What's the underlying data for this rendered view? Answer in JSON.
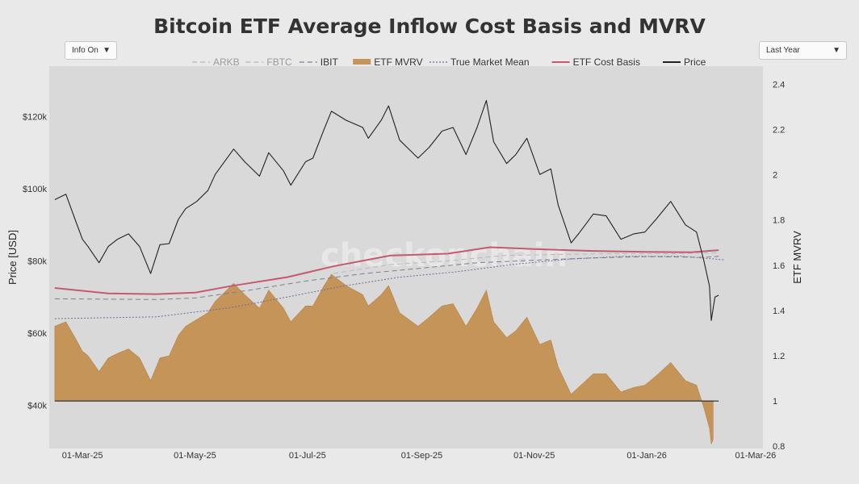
{
  "chart_title": "Bitcoin ETF Average Inflow Cost Basis and MVRV",
  "controls": {
    "info_toggle": "Info On",
    "range_select": "Last Year",
    "arrow": "▼"
  },
  "watermark": "checkonchain",
  "legend": [
    {
      "label": "ARKB",
      "style": "dash",
      "color": "#b9b9b9"
    },
    {
      "label": "FBTC",
      "style": "dash",
      "color": "#b9b9b9"
    },
    {
      "label": "IBIT",
      "style": "dash",
      "color": "#7a7f93"
    },
    {
      "label": "ETF MVRV",
      "style": "fill",
      "color": "#c49458"
    },
    {
      "label": "True Market Mean",
      "style": "dot",
      "color": "#6b6f9a"
    },
    {
      "label": "ETF Cost Basis",
      "style": "line",
      "color": "#c45a72"
    },
    {
      "label": "Price",
      "style": "line",
      "color": "#222222"
    }
  ],
  "chart_data": {
    "type": "line",
    "title": "Bitcoin ETF Average Inflow Cost Basis and MVRV",
    "xlabel": "",
    "ylabel": "Price [USD]",
    "y2label": "ETF MVRV",
    "x_ticks": [
      "01-Mar-25",
      "01-May-25",
      "01-Jul-25",
      "01-Sep-25",
      "01-Nov-25",
      "01-Jan-26",
      "01-Mar-26"
    ],
    "y_ticks": [
      "$40k",
      "$60k",
      "$80k",
      "$100k",
      "$120k"
    ],
    "y2_ticks": [
      "0.8",
      "1",
      "1.2",
      "1.4",
      "1.6",
      "1.8",
      "2",
      "2.2",
      "2.4"
    ],
    "ylim": [
      28000,
      134000
    ],
    "y2lim": [
      0.79,
      2.48
    ],
    "xlim": [
      "2025-02-11",
      "2026-03-05"
    ],
    "grid": false,
    "legend_position": "top",
    "mvrv_baseline": 1,
    "series": [
      {
        "name": "Price",
        "color": "#222222",
        "points": [
          [
            "2025-02-14",
            97000
          ],
          [
            "2025-02-20",
            98500
          ],
          [
            "2025-02-25",
            91500
          ],
          [
            "2025-03-01",
            86000
          ],
          [
            "2025-03-04",
            84000
          ],
          [
            "2025-03-10",
            79500
          ],
          [
            "2025-03-15",
            84000
          ],
          [
            "2025-03-20",
            86000
          ],
          [
            "2025-03-26",
            87500
          ],
          [
            "2025-04-01",
            84000
          ],
          [
            "2025-04-07",
            76500
          ],
          [
            "2025-04-12",
            84500
          ],
          [
            "2025-04-17",
            84800
          ],
          [
            "2025-04-22",
            91500
          ],
          [
            "2025-04-26",
            94500
          ],
          [
            "2025-05-02",
            96500
          ],
          [
            "2025-05-08",
            99500
          ],
          [
            "2025-05-12",
            104000
          ],
          [
            "2025-05-22",
            111000
          ],
          [
            "2025-05-28",
            107500
          ],
          [
            "2025-06-05",
            103500
          ],
          [
            "2025-06-10",
            110000
          ],
          [
            "2025-06-18",
            105000
          ],
          [
            "2025-06-22",
            101000
          ],
          [
            "2025-06-30",
            107500
          ],
          [
            "2025-07-04",
            108500
          ],
          [
            "2025-07-10",
            116500
          ],
          [
            "2025-07-14",
            121500
          ],
          [
            "2025-07-22",
            119000
          ],
          [
            "2025-07-31",
            117000
          ],
          [
            "2025-08-03",
            114000
          ],
          [
            "2025-08-10",
            119000
          ],
          [
            "2025-08-14",
            123000
          ],
          [
            "2025-08-20",
            113500
          ],
          [
            "2025-08-30",
            108500
          ],
          [
            "2025-09-05",
            111500
          ],
          [
            "2025-09-12",
            116000
          ],
          [
            "2025-09-18",
            117000
          ],
          [
            "2025-09-25",
            109500
          ],
          [
            "2025-10-01",
            117000
          ],
          [
            "2025-10-06",
            124500
          ],
          [
            "2025-10-10",
            113000
          ],
          [
            "2025-10-17",
            107000
          ],
          [
            "2025-10-22",
            109500
          ],
          [
            "2025-10-28",
            114000
          ],
          [
            "2025-11-04",
            104000
          ],
          [
            "2025-11-10",
            105500
          ],
          [
            "2025-11-14",
            95500
          ],
          [
            "2025-11-21",
            85000
          ],
          [
            "2025-11-25",
            87500
          ],
          [
            "2025-12-03",
            93000
          ],
          [
            "2025-12-10",
            92500
          ],
          [
            "2025-12-18",
            86000
          ],
          [
            "2025-12-25",
            87500
          ],
          [
            "2025-12-31",
            88000
          ],
          [
            "2026-01-06",
            91500
          ],
          [
            "2026-01-14",
            96500
          ],
          [
            "2026-01-22",
            90000
          ],
          [
            "2026-01-28",
            88000
          ],
          [
            "2026-02-01",
            80000
          ],
          [
            "2026-02-04",
            73000
          ],
          [
            "2026-02-05",
            63500
          ],
          [
            "2026-02-07",
            70000
          ],
          [
            "2026-02-09",
            70500
          ]
        ]
      },
      {
        "name": "ETF Cost Basis",
        "color": "#c45a72",
        "points": [
          [
            "2025-02-14",
            72500
          ],
          [
            "2025-03-15",
            71000
          ],
          [
            "2025-04-10",
            70800
          ],
          [
            "2025-05-01",
            71200
          ],
          [
            "2025-05-20",
            73000
          ],
          [
            "2025-06-20",
            75500
          ],
          [
            "2025-07-15",
            78500
          ],
          [
            "2025-08-15",
            81500
          ],
          [
            "2025-09-15",
            82000
          ],
          [
            "2025-10-08",
            83800
          ],
          [
            "2025-11-01",
            83300
          ],
          [
            "2025-12-01",
            82800
          ],
          [
            "2026-01-01",
            82500
          ],
          [
            "2026-01-25",
            82400
          ],
          [
            "2026-02-09",
            83000
          ]
        ]
      },
      {
        "name": "True Market Mean",
        "color": "#6b6f9a",
        "points": [
          [
            "2025-02-14",
            64000
          ],
          [
            "2025-04-10",
            64500
          ],
          [
            "2025-05-20",
            67000
          ],
          [
            "2025-06-20",
            70000
          ],
          [
            "2025-07-20",
            73000
          ],
          [
            "2025-08-20",
            75500
          ],
          [
            "2025-09-20",
            77000
          ],
          [
            "2025-10-20",
            79000
          ],
          [
            "2025-11-20",
            80500
          ],
          [
            "2025-12-20",
            81300
          ],
          [
            "2026-01-20",
            81300
          ],
          [
            "2026-02-12",
            80300
          ]
        ]
      },
      {
        "name": "IBIT",
        "color": "#7a7f93",
        "points": [
          [
            "2025-02-14",
            69500
          ],
          [
            "2025-04-10",
            69300
          ],
          [
            "2025-05-01",
            69700
          ],
          [
            "2025-06-01",
            72000
          ],
          [
            "2025-07-01",
            74500
          ],
          [
            "2025-08-01",
            76500
          ],
          [
            "2025-09-01",
            78000
          ],
          [
            "2025-10-01",
            79500
          ],
          [
            "2025-11-01",
            80200
          ],
          [
            "2025-12-01",
            80800
          ],
          [
            "2026-01-01",
            81200
          ],
          [
            "2026-02-01",
            81000
          ],
          [
            "2026-02-09",
            81300
          ]
        ]
      },
      {
        "name": "FBTC",
        "color": "#b9b9b9",
        "points": [
          [
            "2025-07-15",
            76500
          ],
          [
            "2025-08-15",
            79000
          ],
          [
            "2025-09-15",
            80000
          ],
          [
            "2025-10-15",
            81500
          ],
          [
            "2025-11-15",
            81800
          ],
          [
            "2025-12-15",
            82000
          ],
          [
            "2026-01-15",
            82000
          ],
          [
            "2026-02-09",
            82300
          ]
        ]
      },
      {
        "name": "ETF MVRV",
        "color": "#c49458",
        "axis": "y2",
        "points": [
          [
            "2025-02-14",
            1.33
          ],
          [
            "2025-02-20",
            1.35
          ],
          [
            "2025-02-25",
            1.28
          ],
          [
            "2025-03-01",
            1.22
          ],
          [
            "2025-03-04",
            1.2
          ],
          [
            "2025-03-10",
            1.13
          ],
          [
            "2025-03-15",
            1.19
          ],
          [
            "2025-03-20",
            1.21
          ],
          [
            "2025-03-26",
            1.23
          ],
          [
            "2025-04-01",
            1.19
          ],
          [
            "2025-04-07",
            1.09
          ],
          [
            "2025-04-12",
            1.19
          ],
          [
            "2025-04-17",
            1.2
          ],
          [
            "2025-04-22",
            1.29
          ],
          [
            "2025-04-26",
            1.33
          ],
          [
            "2025-05-02",
            1.36
          ],
          [
            "2025-05-08",
            1.39
          ],
          [
            "2025-05-12",
            1.44
          ],
          [
            "2025-05-22",
            1.52
          ],
          [
            "2025-05-28",
            1.47
          ],
          [
            "2025-06-05",
            1.41
          ],
          [
            "2025-06-10",
            1.49
          ],
          [
            "2025-06-18",
            1.41
          ],
          [
            "2025-06-22",
            1.35
          ],
          [
            "2025-06-30",
            1.42
          ],
          [
            "2025-07-04",
            1.42
          ],
          [
            "2025-07-10",
            1.51
          ],
          [
            "2025-07-14",
            1.56
          ],
          [
            "2025-07-22",
            1.51
          ],
          [
            "2025-07-31",
            1.47
          ],
          [
            "2025-08-03",
            1.42
          ],
          [
            "2025-08-10",
            1.47
          ],
          [
            "2025-08-14",
            1.51
          ],
          [
            "2025-08-20",
            1.39
          ],
          [
            "2025-08-30",
            1.33
          ],
          [
            "2025-09-05",
            1.37
          ],
          [
            "2025-09-12",
            1.42
          ],
          [
            "2025-09-18",
            1.43
          ],
          [
            "2025-09-25",
            1.33
          ],
          [
            "2025-10-01",
            1.41
          ],
          [
            "2025-10-06",
            1.49
          ],
          [
            "2025-10-10",
            1.35
          ],
          [
            "2025-10-17",
            1.28
          ],
          [
            "2025-10-22",
            1.31
          ],
          [
            "2025-10-28",
            1.37
          ],
          [
            "2025-11-04",
            1.25
          ],
          [
            "2025-11-10",
            1.27
          ],
          [
            "2025-11-14",
            1.15
          ],
          [
            "2025-11-21",
            1.03
          ],
          [
            "2025-11-25",
            1.06
          ],
          [
            "2025-12-03",
            1.12
          ],
          [
            "2025-12-10",
            1.12
          ],
          [
            "2025-12-18",
            1.04
          ],
          [
            "2025-12-25",
            1.06
          ],
          [
            "2025-12-31",
            1.07
          ],
          [
            "2026-01-06",
            1.11
          ],
          [
            "2026-01-14",
            1.17
          ],
          [
            "2026-01-22",
            1.09
          ],
          [
            "2026-01-28",
            1.07
          ],
          [
            "2026-02-01",
            0.97
          ],
          [
            "2026-02-04",
            0.88
          ],
          [
            "2026-02-05",
            0.81
          ],
          [
            "2026-02-06",
            0.83
          ]
        ]
      }
    ]
  }
}
